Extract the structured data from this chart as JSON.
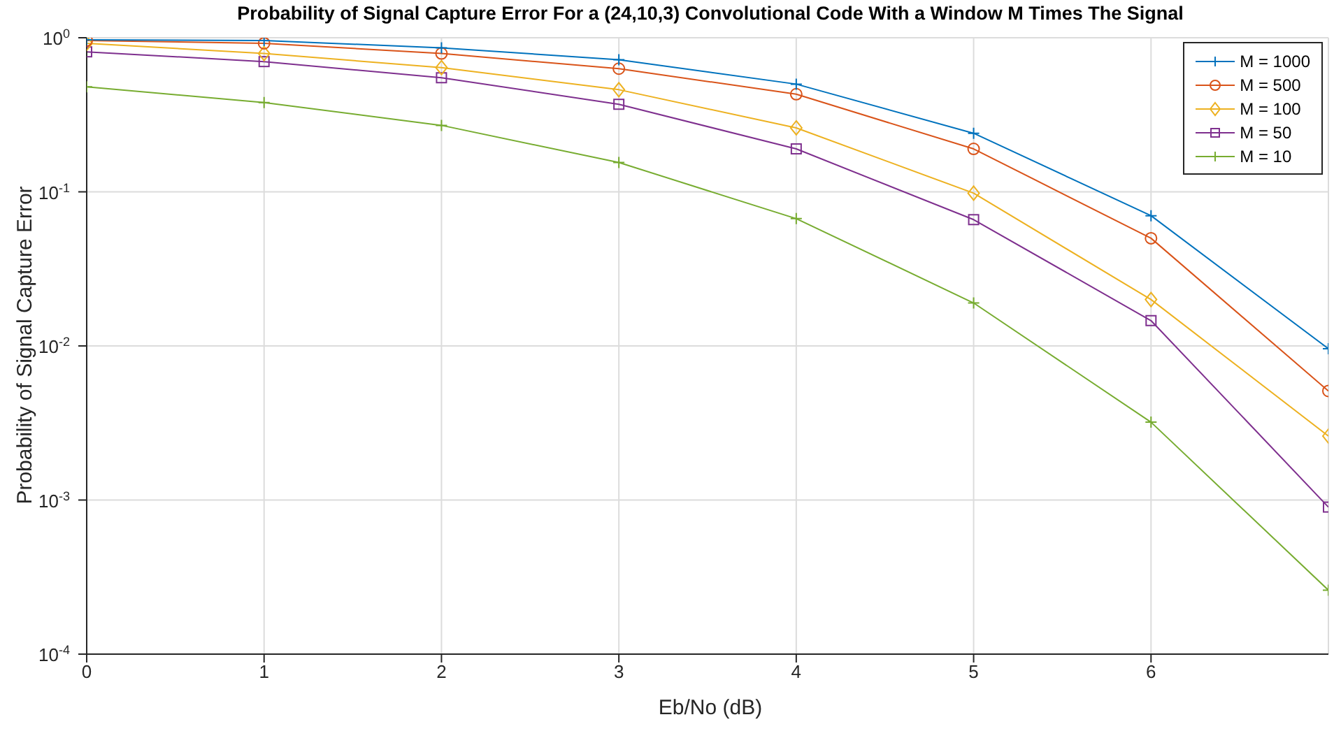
{
  "chart_data": {
    "type": "line",
    "title": "Probability of Signal Capture Error For a (24,10,3) Convolutional Code With a Window M Times The Signal",
    "xlabel": "Eb/No (dB)",
    "ylabel": "Probability of Signal Capture Error",
    "x": [
      0,
      1,
      2,
      3,
      4,
      5,
      6,
      7
    ],
    "series": [
      {
        "name": "M = 1000",
        "color": "#0072bd",
        "marker": "cross",
        "values": [
          0.97,
          0.96,
          0.86,
          0.72,
          0.5,
          0.24,
          0.07,
          0.0096
        ]
      },
      {
        "name": "M = 500",
        "color": "#d95319",
        "marker": "circle",
        "values": [
          0.96,
          0.92,
          0.79,
          0.63,
          0.43,
          0.19,
          0.05,
          0.0051
        ]
      },
      {
        "name": "M = 100",
        "color": "#edb120",
        "marker": "diamond",
        "values": [
          0.92,
          0.79,
          0.64,
          0.46,
          0.26,
          0.098,
          0.02,
          0.0026
        ]
      },
      {
        "name": "M = 50",
        "color": "#7e2f8e",
        "marker": "square",
        "values": [
          0.81,
          0.7,
          0.55,
          0.37,
          0.19,
          0.066,
          0.0146,
          0.0009
        ]
      },
      {
        "name": "M = 10",
        "color": "#77ac30",
        "marker": "cross",
        "values": [
          0.48,
          0.38,
          0.27,
          0.155,
          0.067,
          0.019,
          0.0032,
          0.00026
        ]
      }
    ],
    "xlim": [
      0,
      7
    ],
    "xticks": [
      0,
      1,
      2,
      3,
      4,
      5,
      6
    ],
    "ylim": [
      0.0001,
      1
    ],
    "yticks": [
      {
        "value": 0.0001,
        "label": "10$^{-4}$"
      },
      {
        "value": 0.001,
        "label": "10$^{-3}$"
      },
      {
        "value": 0.01,
        "label": "10$^{-2}$"
      },
      {
        "value": 0.1,
        "label": "10$^{-1}$"
      },
      {
        "value": 1,
        "label": "10$^{0}$"
      }
    ],
    "log": "y",
    "grid": true,
    "legend": "top right",
    "line_style": "solid"
  }
}
